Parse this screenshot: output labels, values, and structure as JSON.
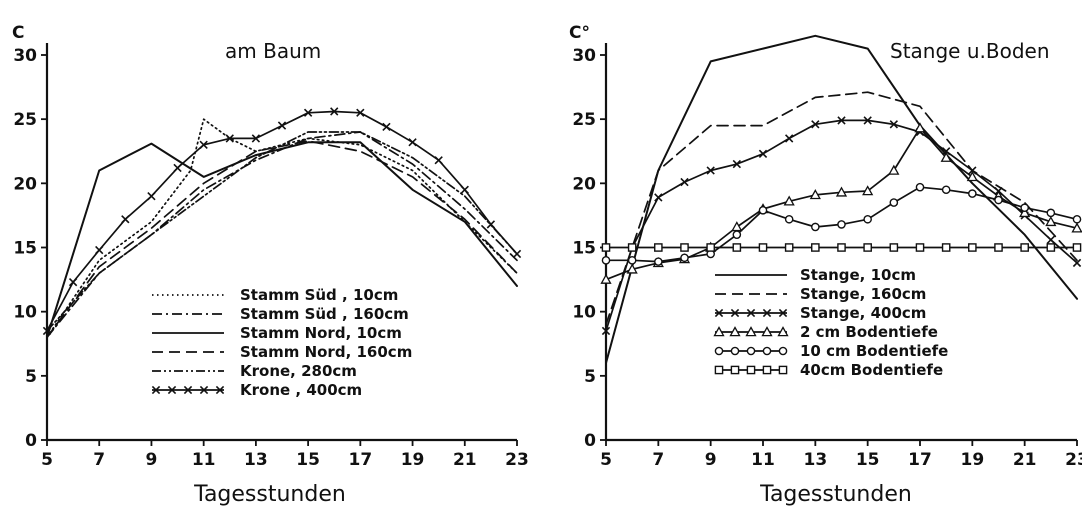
{
  "chart_data": [
    {
      "type": "line",
      "title": "am Baum",
      "ylabel": "C",
      "xlabel": "Tagesstunden",
      "xlim": [
        5,
        23
      ],
      "ylim": [
        0,
        30
      ],
      "xticks": [
        5,
        7,
        9,
        11,
        13,
        15,
        17,
        19,
        21,
        23
      ],
      "yticks": [
        0,
        5,
        10,
        15,
        20,
        25,
        30
      ],
      "series": [
        {
          "name": "Stamm Süd, 10cm",
          "dash": "dotted",
          "points": [
            [
              5,
              8
            ],
            [
              7,
              14
            ],
            [
              9,
              17
            ],
            [
              10.5,
              21
            ],
            [
              11,
              25
            ],
            [
              12,
              23.5
            ],
            [
              13,
              22.5
            ],
            [
              15,
              23.5
            ],
            [
              17,
              23
            ],
            [
              19,
              21
            ],
            [
              21,
              17
            ],
            [
              23,
              13
            ]
          ]
        },
        {
          "name": "Stamm Süd, 160cm",
          "dash": "dashdot",
          "points": [
            [
              5,
              8
            ],
            [
              7,
              13
            ],
            [
              9,
              16
            ],
            [
              11,
              19.5
            ],
            [
              13,
              21.8
            ],
            [
              15,
              23.5
            ],
            [
              17,
              24
            ],
            [
              19,
              21.5
            ],
            [
              21,
              18
            ],
            [
              23,
              14
            ]
          ]
        },
        {
          "name": "Stamm Nord, 10cm",
          "dash": "solid",
          "points": [
            [
              5,
              8
            ],
            [
              7,
              21
            ],
            [
              9,
              23.1
            ],
            [
              11,
              20.5
            ],
            [
              13,
              22.2
            ],
            [
              15,
              23.2
            ],
            [
              17,
              23.2
            ],
            [
              19,
              19.5
            ],
            [
              21,
              17
            ],
            [
              23,
              12
            ]
          ]
        },
        {
          "name": "Stamm Nord, 160cm",
          "dash": "dashed",
          "points": [
            [
              5,
              8
            ],
            [
              7,
              13.5
            ],
            [
              9,
              16.5
            ],
            [
              11,
              20
            ],
            [
              13,
              22.5
            ],
            [
              15,
              23.3
            ],
            [
              17,
              22.5
            ],
            [
              19,
              20.5
            ],
            [
              21,
              17.2
            ],
            [
              23,
              13
            ]
          ]
        },
        {
          "name": "Krone, 280cm",
          "dash": "dashdotdot",
          "points": [
            [
              5,
              8.5
            ],
            [
              7,
              13
            ],
            [
              9,
              16
            ],
            [
              11,
              19
            ],
            [
              13,
              22
            ],
            [
              15,
              24
            ],
            [
              17,
              24
            ],
            [
              19,
              22
            ],
            [
              21,
              19
            ],
            [
              23,
              14.5
            ]
          ]
        },
        {
          "name": "Krone, 400cm",
          "dash": "crossed",
          "points": [
            [
              5,
              8.5
            ],
            [
              6,
              12.3
            ],
            [
              7,
              14.8
            ],
            [
              8,
              17.2
            ],
            [
              9,
              19
            ],
            [
              10,
              21.2
            ],
            [
              11,
              23
            ],
            [
              12,
              23.5
            ],
            [
              13,
              23.5
            ],
            [
              14,
              24.5
            ],
            [
              15,
              25.5
            ],
            [
              16,
              25.6
            ],
            [
              17,
              25.5
            ],
            [
              18,
              24.4
            ],
            [
              19,
              23.2
            ],
            [
              20,
              21.8
            ],
            [
              21,
              19.5
            ],
            [
              22,
              16.8
            ],
            [
              23,
              14.5
            ]
          ]
        }
      ]
    },
    {
      "type": "line",
      "title": "Stange u.Boden",
      "ylabel": "C°",
      "xlabel": "Tagesstunden",
      "xlim": [
        5,
        23
      ],
      "ylim": [
        0,
        30
      ],
      "xticks": [
        5,
        7,
        9,
        11,
        13,
        15,
        17,
        19,
        21,
        23
      ],
      "yticks": [
        0,
        5,
        10,
        15,
        20,
        25,
        30
      ],
      "series": [
        {
          "name": "Stange, 10cm",
          "dash": "solid",
          "points": [
            [
              5,
              6
            ],
            [
              7,
              21
            ],
            [
              9,
              29.5
            ],
            [
              11,
              30.5
            ],
            [
              13,
              31.5
            ],
            [
              15,
              30.5
            ],
            [
              17,
              24.5
            ],
            [
              19,
              20
            ],
            [
              21,
              16
            ],
            [
              23,
              11
            ]
          ]
        },
        {
          "name": "Stange, 160cm",
          "dash": "dashed",
          "points": [
            [
              5,
              9
            ],
            [
              7,
              21
            ],
            [
              9,
              24.5
            ],
            [
              11,
              24.5
            ],
            [
              13,
              26.7
            ],
            [
              15,
              27.1
            ],
            [
              17,
              26
            ],
            [
              19,
              21
            ],
            [
              21,
              18.5
            ],
            [
              23,
              14
            ]
          ]
        },
        {
          "name": "Stange, 400cm",
          "dash": "crossed",
          "points": [
            [
              5,
              8.5
            ],
            [
              6,
              15
            ],
            [
              7,
              18.9
            ],
            [
              8,
              20.1
            ],
            [
              9,
              21
            ],
            [
              10,
              21.5
            ],
            [
              11,
              22.3
            ],
            [
              12,
              23.5
            ],
            [
              13,
              24.6
            ],
            [
              14,
              24.9
            ],
            [
              15,
              24.9
            ],
            [
              16,
              24.6
            ],
            [
              17,
              24
            ],
            [
              18,
              22.5
            ],
            [
              19,
              21
            ],
            [
              20,
              19.4
            ],
            [
              21,
              17.5
            ],
            [
              22,
              15.6
            ],
            [
              23,
              13.8
            ]
          ]
        },
        {
          "name": "2 cm Bodentiefe",
          "dash": "triangle",
          "points": [
            [
              5,
              12.5
            ],
            [
              6,
              13.3
            ],
            [
              7,
              13.8
            ],
            [
              8,
              14.1
            ],
            [
              9,
              15
            ],
            [
              10,
              16.6
            ],
            [
              11,
              18
            ],
            [
              12,
              18.6
            ],
            [
              13,
              19.1
            ],
            [
              14,
              19.3
            ],
            [
              15,
              19.4
            ],
            [
              16,
              21
            ],
            [
              17,
              24.3
            ],
            [
              18,
              22
            ],
            [
              19,
              20.5
            ],
            [
              20,
              19
            ],
            [
              21,
              17.7
            ],
            [
              22,
              17
            ],
            [
              23,
              16.5
            ]
          ]
        },
        {
          "name": "10 cm Bodentiefe",
          "dash": "circle",
          "points": [
            [
              5,
              14
            ],
            [
              6,
              14
            ],
            [
              7,
              13.9
            ],
            [
              8,
              14.2
            ],
            [
              9,
              14.5
            ],
            [
              10,
              16
            ],
            [
              11,
              17.9
            ],
            [
              12,
              17.2
            ],
            [
              13,
              16.6
            ],
            [
              14,
              16.8
            ],
            [
              15,
              17.2
            ],
            [
              16,
              18.5
            ],
            [
              17,
              19.7
            ],
            [
              18,
              19.5
            ],
            [
              19,
              19.2
            ],
            [
              20,
              18.7
            ],
            [
              21,
              18.1
            ],
            [
              22,
              17.7
            ],
            [
              23,
              17.2
            ]
          ]
        },
        {
          "name": "40cm Bodentiefe",
          "dash": "square",
          "points": [
            [
              5,
              15
            ],
            [
              6,
              15
            ],
            [
              7,
              15
            ],
            [
              8,
              15
            ],
            [
              9,
              15
            ],
            [
              10,
              15
            ],
            [
              11,
              15
            ],
            [
              12,
              15
            ],
            [
              13,
              15
            ],
            [
              14,
              15
            ],
            [
              15,
              15
            ],
            [
              16,
              15
            ],
            [
              17,
              15
            ],
            [
              18,
              15
            ],
            [
              19,
              15
            ],
            [
              20,
              15
            ],
            [
              21,
              15
            ],
            [
              22,
              15
            ],
            [
              23,
              15
            ]
          ]
        }
      ]
    }
  ],
  "legend_labels": {
    "left": [
      "Stamm Süd , 10cm",
      "Stamm Süd , 160cm",
      "Stamm Nord, 10cm",
      "Stamm Nord, 160cm",
      "Krone, 280cm",
      "Krone , 400cm"
    ],
    "right": [
      "Stange, 10cm",
      "Stange, 160cm",
      "Stange, 400cm",
      "2 cm Bodentiefe",
      "10 cm Bodentiefe",
      "40cm Bodentiefe"
    ]
  }
}
